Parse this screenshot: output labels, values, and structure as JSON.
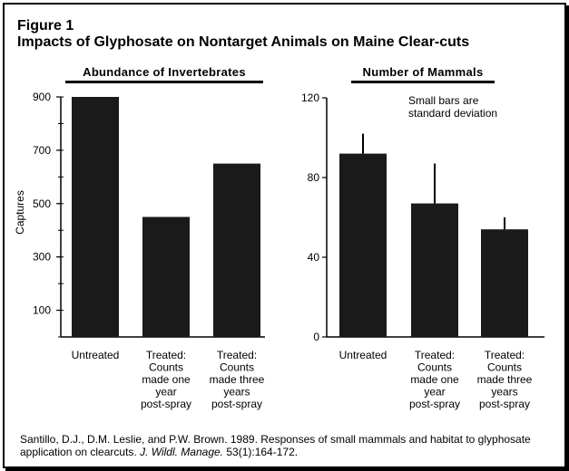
{
  "figure": {
    "label": "Figure 1",
    "title": "Impacts of Glyphosate on Nontarget Animals on Maine Clear-cuts"
  },
  "citation": {
    "text_before": "Santillo, D.J., D.M. Leslie, and P.W. Brown. 1989. Responses of small mammals and habitat to glyphosate application on clearcuts. ",
    "journal": "J. Wildl. Manage.",
    "text_after": " 53(1):164-172."
  },
  "chart_data": [
    {
      "type": "bar",
      "title": "Abundance of Invertebrates",
      "ylabel": "Captures",
      "xlabel": "",
      "categories": [
        [
          "Untreated"
        ],
        [
          "Treated:",
          "Counts",
          "made one",
          "year",
          "post-spray"
        ],
        [
          "Treated:",
          "Counts",
          "made three",
          "years",
          "post-spray"
        ]
      ],
      "values": [
        900,
        450,
        650
      ],
      "ylim": [
        0,
        900
      ],
      "yticks": [
        100,
        300,
        500,
        700,
        900
      ],
      "annotation": "",
      "bar_color": "#1a1a1a"
    },
    {
      "type": "bar",
      "title": "Number of Mammals",
      "ylabel": "",
      "xlabel": "",
      "categories": [
        [
          "Untreated"
        ],
        [
          "Treated:",
          "Counts",
          "made one",
          "year",
          "post-spray"
        ],
        [
          "Treated:",
          "Counts",
          "made three",
          "years",
          "post-spray"
        ]
      ],
      "values": [
        92,
        67,
        54
      ],
      "error_upper": [
        102,
        87,
        60
      ],
      "ylim": [
        0,
        120
      ],
      "yticks": [
        0,
        40,
        80,
        120
      ],
      "annotation": [
        "Small bars are",
        "standard deviation"
      ],
      "bar_color": "#1a1a1a"
    }
  ]
}
